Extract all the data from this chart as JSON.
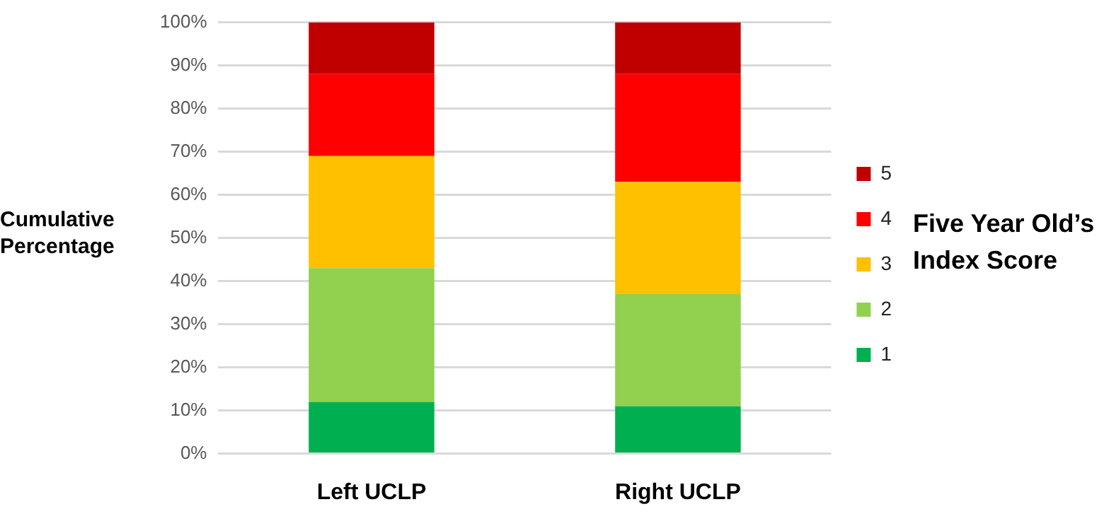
{
  "chart_data": {
    "type": "bar",
    "stacked": true,
    "ylabel": "Cumulative Percentage",
    "legend_title": "Five Year Old’s Index Score",
    "categories": [
      "Left UCLP",
      "Right UCLP"
    ],
    "series": [
      {
        "name": "1",
        "color": "#00b050",
        "values": [
          12,
          11
        ]
      },
      {
        "name": "2",
        "color": "#92d050",
        "values": [
          31,
          26
        ]
      },
      {
        "name": "3",
        "color": "#ffc000",
        "values": [
          26,
          26
        ]
      },
      {
        "name": "4",
        "color": "#ff0000",
        "values": [
          19,
          25
        ]
      },
      {
        "name": "5",
        "color": "#c00000",
        "values": [
          12,
          12
        ]
      }
    ],
    "ylim": [
      0,
      100
    ],
    "yticks": [
      {
        "value": 0,
        "label": "0%"
      },
      {
        "value": 10,
        "label": "10%"
      },
      {
        "value": 20,
        "label": "20%"
      },
      {
        "value": 30,
        "label": "30%"
      },
      {
        "value": 40,
        "label": "40%"
      },
      {
        "value": 50,
        "label": "50%"
      },
      {
        "value": 60,
        "label": "60%"
      },
      {
        "value": 70,
        "label": "70%"
      },
      {
        "value": 80,
        "label": "80%"
      },
      {
        "value": 90,
        "label": "90%"
      },
      {
        "value": 100,
        "label": "100%"
      }
    ],
    "grid": "y",
    "legend": "right"
  }
}
